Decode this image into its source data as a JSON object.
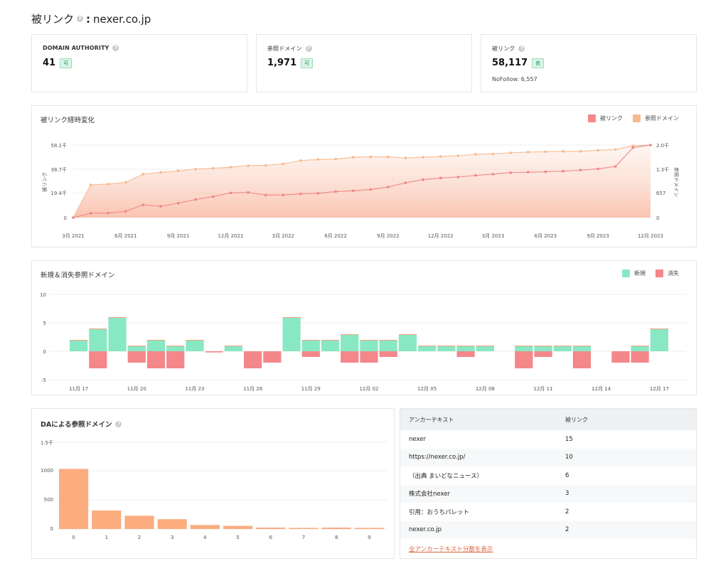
{
  "header": {
    "title": "被リンク",
    "sep": ":",
    "domain": "nexer.co.jp"
  },
  "stats": [
    {
      "label": "DOMAIN AUTHORITY",
      "value": "41",
      "badge": "可"
    },
    {
      "label": "参照ドメイン",
      "value": "1,971",
      "badge": "可"
    },
    {
      "label": "被リンク",
      "value": "58,117",
      "badge": "良",
      "sub": "NoFollow: 6,557"
    }
  ],
  "colors": {
    "backlinks": "#f4878a",
    "domains": "#f6b98b",
    "new": "#88e8c3",
    "lost": "#f4878a",
    "da": "#fbad80",
    "link": "#e0643a"
  },
  "backlink_chart": {
    "title": "被リンク経時変化",
    "legend": [
      "被リンク",
      "参照ドメイン"
    ],
    "y_left_label": "被リンク",
    "y_right_label": "参照ドメイン",
    "y_left_ticks": [
      "58.1千",
      "38.7千",
      "19.4千",
      "0"
    ],
    "y_right_ticks": [
      "2.0千",
      "1.3千",
      "657",
      "0"
    ],
    "x_ticks": [
      "3月 2021",
      "6月 2021",
      "9月 2021",
      "12月 2021",
      "3月 2022",
      "6月 2022",
      "9月 2022",
      "12月 2022",
      "3月 2023",
      "6月 2023",
      "9月 2023",
      "12月 2023"
    ]
  },
  "newlost_chart": {
    "title": "新規＆消失参照ドメイン",
    "legend": [
      "新規",
      "消失"
    ],
    "y_ticks": [
      "10",
      "5",
      "0",
      "-5"
    ],
    "x_ticks": [
      "11月 17",
      "11月 20",
      "11月 23",
      "11月 26",
      "11月 29",
      "12月 02",
      "12月 05",
      "12月 08",
      "12月 11",
      "12月 14",
      "12月 17"
    ]
  },
  "da_chart": {
    "title": "DAによる参照ドメイン",
    "y_ticks": [
      "1.5千",
      "1000",
      "500",
      "0"
    ]
  },
  "anchor_table": {
    "headers": [
      "アンカーテキスト",
      "被リンク"
    ],
    "rows": [
      {
        "text": "nexer",
        "count": "15"
      },
      {
        "text": "https://nexer.co.jp/",
        "count": "10"
      },
      {
        "text": "（出典 まいどなニュース）",
        "count": "6"
      },
      {
        "text": "株式会社nexer",
        "count": "3"
      },
      {
        "text": "引用：おうちパレット",
        "count": "2"
      },
      {
        "text": "nexer.co.jp",
        "count": "2"
      }
    ],
    "link": "全アンカーテキスト分散を表示"
  },
  "chart_data": [
    {
      "type": "line",
      "title": "被リンク経時変化",
      "x": [
        "2021-03",
        "2021-04",
        "2021-05",
        "2021-06",
        "2021-07",
        "2021-08",
        "2021-09",
        "2021-10",
        "2021-11",
        "2021-12",
        "2022-01",
        "2022-02",
        "2022-03",
        "2022-04",
        "2022-05",
        "2022-06",
        "2022-07",
        "2022-08",
        "2022-09",
        "2022-10",
        "2022-11",
        "2022-12",
        "2023-01",
        "2023-02",
        "2023-03",
        "2023-04",
        "2023-05",
        "2023-06",
        "2023-07",
        "2023-08",
        "2023-09",
        "2023-10",
        "2023-11",
        "2023-12"
      ],
      "series": [
        {
          "name": "被リンク",
          "axis": "left",
          "values": [
            0,
            3500,
            3700,
            5000,
            10200,
            9000,
            11500,
            14500,
            16800,
            19800,
            20100,
            18000,
            18100,
            19000,
            19500,
            20800,
            21500,
            22500,
            24500,
            27900,
            30400,
            31700,
            32500,
            33800,
            34800,
            36000,
            36400,
            36700,
            37200,
            38000,
            39000,
            41000,
            56000,
            58100
          ]
        },
        {
          "name": "参照ドメイン",
          "axis": "right",
          "values": [
            0,
            890,
            910,
            960,
            1180,
            1230,
            1270,
            1320,
            1340,
            1370,
            1410,
            1420,
            1460,
            1550,
            1580,
            1590,
            1640,
            1650,
            1650,
            1620,
            1640,
            1660,
            1680,
            1720,
            1730,
            1760,
            1780,
            1790,
            1800,
            1800,
            1830,
            1850,
            1950,
            1971
          ]
        }
      ],
      "y_left_range": [
        0,
        58100
      ],
      "y_right_range": [
        0,
        1971
      ]
    },
    {
      "type": "bar",
      "title": "新規＆消失参照ドメイン",
      "categories": [
        "11-17",
        "11-18",
        "11-19",
        "11-20",
        "11-21",
        "11-22",
        "11-23",
        "11-24",
        "11-25",
        "11-26",
        "11-27",
        "11-28",
        "11-29",
        "11-30",
        "12-01",
        "12-02",
        "12-03",
        "12-04",
        "12-05",
        "12-06",
        "12-07",
        "12-08",
        "12-09",
        "12-10",
        "12-11",
        "12-12",
        "12-13",
        "12-14",
        "12-15",
        "12-16",
        "12-17"
      ],
      "series": [
        {
          "name": "新規",
          "values": [
            2,
            4,
            6,
            1,
            2,
            1,
            2,
            0,
            1,
            0,
            0,
            6,
            2,
            2,
            3,
            2,
            2,
            3,
            1,
            1,
            1,
            1,
            0,
            1,
            1,
            1,
            1,
            0,
            0,
            1,
            4
          ]
        },
        {
          "name": "消失",
          "values": [
            0,
            -3,
            0,
            -2,
            -3,
            -3,
            0,
            -0.2,
            0,
            -3,
            -2,
            0,
            -1,
            0,
            -2,
            -2,
            -1,
            0,
            0,
            0,
            -1,
            0,
            0,
            -3,
            -1,
            0,
            -3,
            0,
            -2,
            -2,
            0
          ]
        }
      ],
      "ylim": [
        -5,
        10
      ]
    },
    {
      "type": "bar",
      "title": "DAによる参照ドメイン",
      "categories": [
        "0",
        "1",
        "2",
        "3",
        "4",
        "5",
        "6",
        "7",
        "8",
        "9"
      ],
      "values": [
        1040,
        320,
        230,
        170,
        70,
        55,
        25,
        20,
        25,
        20
      ],
      "ylim": [
        0,
        1500
      ]
    }
  ]
}
